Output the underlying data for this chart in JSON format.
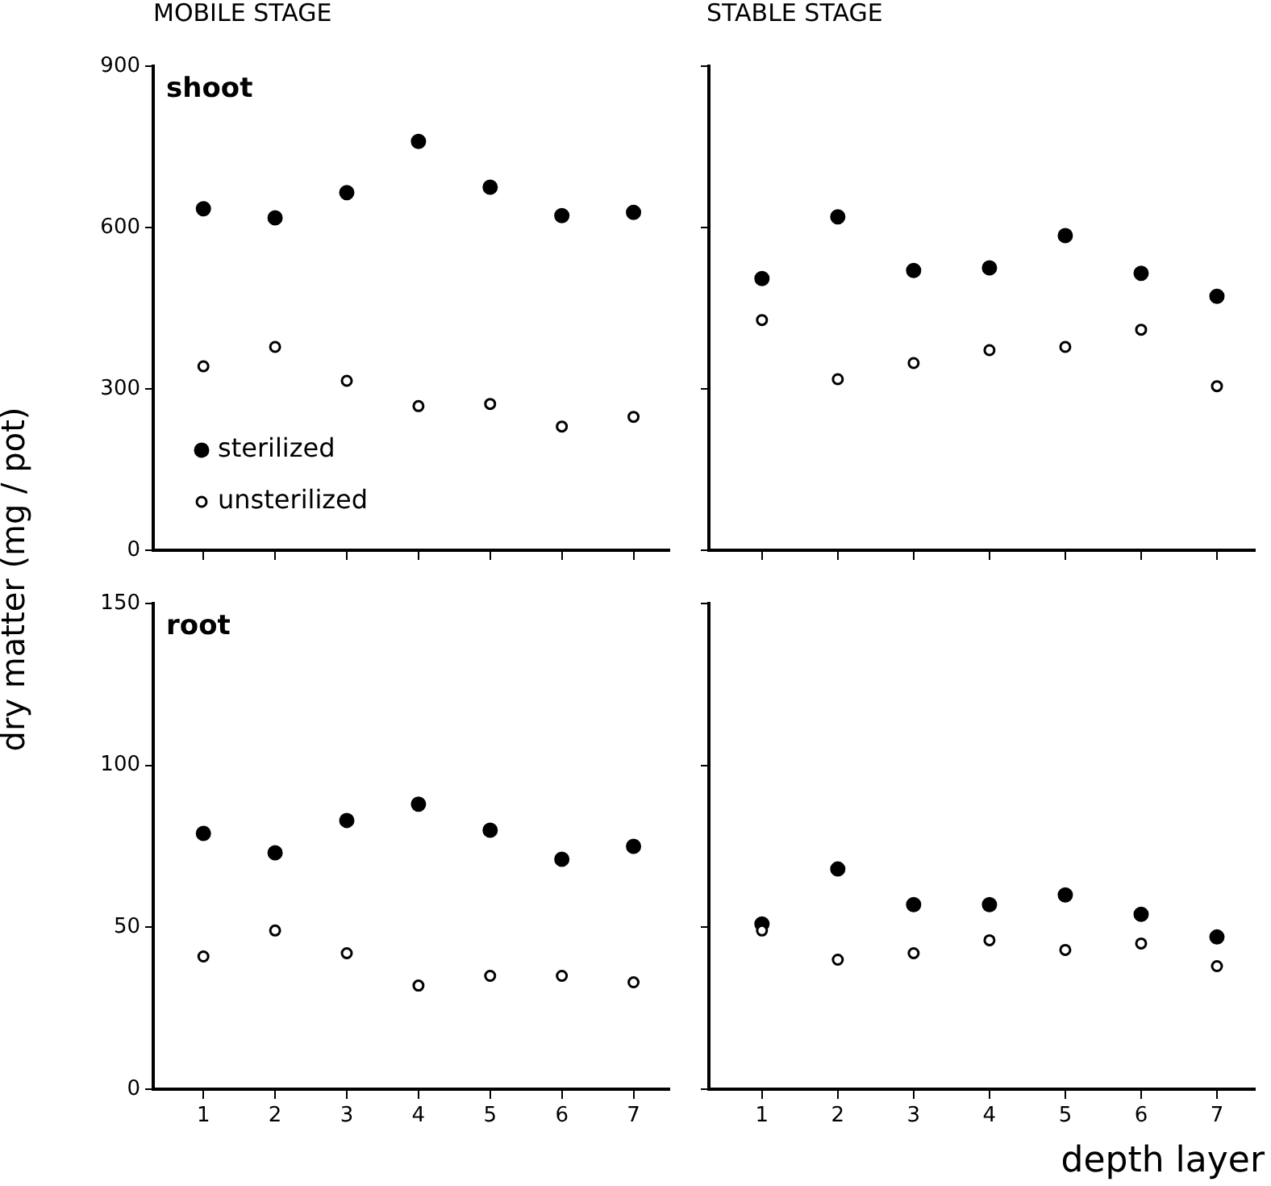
{
  "chart_data": [
    {
      "type": "scatter",
      "title": "MOBILE STAGE",
      "ylabel": "dry matter (mg / pot)",
      "annotations": [
        "shoot"
      ],
      "x": [
        1,
        2,
        3,
        4,
        5,
        6,
        7
      ],
      "xlim": [
        0.3,
        7.5
      ],
      "xticks": [
        1,
        2,
        3,
        4,
        5,
        6,
        7
      ],
      "ylim": [
        0,
        900
      ],
      "yticks": [
        0,
        300,
        600,
        900
      ],
      "tick_labels": "y",
      "legend": "bottom left",
      "marker": "circle",
      "grid": false,
      "series": [
        {
          "name": "sterilized",
          "color": "#000000",
          "values": [
            635,
            618,
            665,
            760,
            675,
            622,
            628
          ]
        },
        {
          "name": "unsterilized",
          "color": "#000000",
          "values": [
            342,
            378,
            315,
            268,
            272,
            230,
            248
          ]
        }
      ]
    },
    {
      "type": "scatter",
      "title": "STABLE STAGE",
      "x": [
        1,
        2,
        3,
        4,
        5,
        6,
        7
      ],
      "xlim": [
        0.3,
        7.5
      ],
      "xticks": [
        1,
        2,
        3,
        4,
        5,
        6,
        7
      ],
      "ylim": [
        0,
        900
      ],
      "yticks": [
        0,
        300,
        600,
        900
      ],
      "tick_labels": false,
      "marker": "circle",
      "grid": false,
      "series": [
        {
          "color": "#000000",
          "values": [
            505,
            620,
            520,
            525,
            585,
            515,
            472
          ]
        },
        {
          "color": "#000000",
          "values": [
            428,
            318,
            348,
            372,
            378,
            410,
            305
          ]
        }
      ]
    },
    {
      "type": "scatter",
      "annotations": [
        "root"
      ],
      "x": [
        1,
        2,
        3,
        4,
        5,
        6,
        7
      ],
      "xlim": [
        0.3,
        7.5
      ],
      "xticks": [
        1,
        2,
        3,
        4,
        5,
        6,
        7
      ],
      "ylim": [
        0,
        150
      ],
      "yticks": [
        0,
        50,
        100,
        150
      ],
      "marker": "circle",
      "grid": false,
      "series": [
        {
          "color": "#000000",
          "values": [
            79,
            73,
            83,
            88,
            80,
            71,
            75
          ]
        },
        {
          "color": "#000000",
          "values": [
            41,
            49,
            42,
            32,
            35,
            35,
            33
          ]
        }
      ]
    },
    {
      "type": "scatter",
      "xlabel": "depth layer",
      "x": [
        1,
        2,
        3,
        4,
        5,
        6,
        7
      ],
      "xlim": [
        0.3,
        7.5
      ],
      "xticks": [
        1,
        2,
        3,
        4,
        5,
        6,
        7
      ],
      "ylim": [
        0,
        150
      ],
      "yticks": [
        0,
        50,
        100,
        150
      ],
      "tick_labels": "x",
      "marker": "circle",
      "grid": false,
      "series": [
        {
          "color": "#000000",
          "values": [
            51,
            68,
            57,
            57,
            60,
            54,
            47
          ]
        },
        {
          "color": "#000000",
          "values": [
            49,
            40,
            42,
            46,
            43,
            45,
            38
          ]
        }
      ]
    }
  ]
}
